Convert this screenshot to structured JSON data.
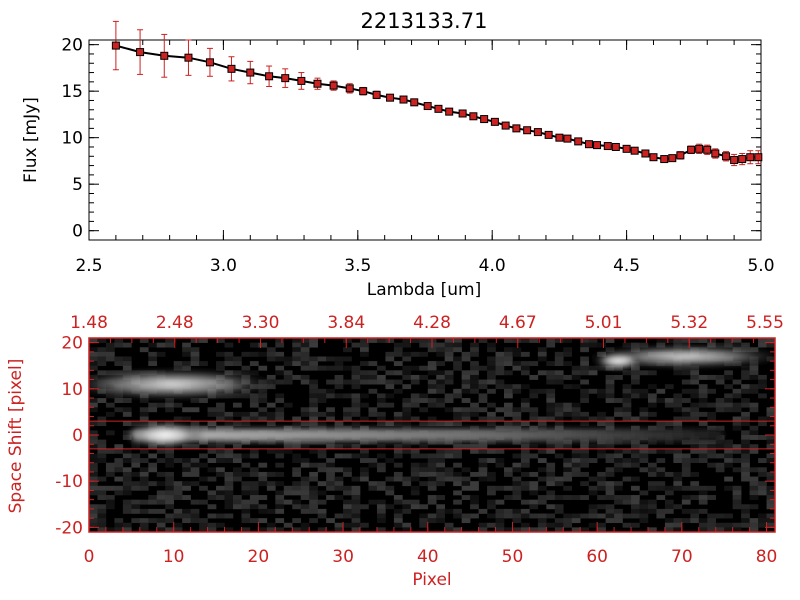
{
  "chart_data": [
    {
      "type": "scatter",
      "title": "2213133.71",
      "xlabel": "Lambda [um]",
      "ylabel": "Flux [mJy]",
      "xlim": [
        2.5,
        5.0
      ],
      "ylim": [
        -1,
        20.5
      ],
      "x_ticks": [
        "2.5",
        "3.0",
        "3.5",
        "4.0",
        "4.5",
        "5.0"
      ],
      "y_ticks": [
        "0",
        "5",
        "10",
        "15",
        "20"
      ],
      "series": [
        {
          "marker": "square",
          "line_color": "#000000",
          "marker_color": "#cc2222",
          "errorbar_color": "#cc2222",
          "x": [
            2.6,
            2.69,
            2.78,
            2.87,
            2.95,
            3.03,
            3.1,
            3.17,
            3.23,
            3.29,
            3.35,
            3.41,
            3.47,
            3.52,
            3.57,
            3.62,
            3.67,
            3.71,
            3.76,
            3.8,
            3.84,
            3.89,
            3.93,
            3.97,
            4.01,
            4.05,
            4.09,
            4.13,
            4.17,
            4.21,
            4.25,
            4.28,
            4.32,
            4.36,
            4.39,
            4.43,
            4.46,
            4.5,
            4.53,
            4.57,
            4.6,
            4.64,
            4.67,
            4.7,
            4.74,
            4.77,
            4.8,
            4.83,
            4.87,
            4.9,
            4.93,
            4.96,
            4.99
          ],
          "y": [
            19.9,
            19.2,
            18.8,
            18.6,
            18.1,
            17.4,
            17.0,
            16.6,
            16.4,
            16.1,
            15.8,
            15.6,
            15.3,
            15.0,
            14.6,
            14.3,
            14.1,
            13.8,
            13.4,
            13.1,
            12.8,
            12.6,
            12.3,
            12.0,
            11.7,
            11.3,
            11.0,
            10.8,
            10.6,
            10.3,
            10.0,
            9.9,
            9.6,
            9.3,
            9.2,
            9.1,
            9.0,
            8.8,
            8.6,
            8.3,
            7.9,
            7.7,
            7.8,
            8.1,
            8.7,
            8.8,
            8.7,
            8.3,
            8.0,
            7.6,
            7.7,
            7.9,
            7.9
          ],
          "err": [
            2.6,
            2.4,
            2.3,
            1.9,
            1.5,
            1.3,
            1.2,
            1.1,
            1.0,
            0.9,
            0.6,
            0.5,
            0.5,
            0.4,
            0.4,
            0.3,
            0.3,
            0.3,
            0.3,
            0.3,
            0.3,
            0.3,
            0.3,
            0.3,
            0.3,
            0.3,
            0.3,
            0.3,
            0.3,
            0.3,
            0.3,
            0.3,
            0.3,
            0.3,
            0.3,
            0.3,
            0.3,
            0.3,
            0.3,
            0.3,
            0.3,
            0.3,
            0.3,
            0.4,
            0.4,
            0.5,
            0.5,
            0.5,
            0.5,
            0.6,
            0.6,
            0.7,
            0.7
          ]
        }
      ]
    },
    {
      "type": "heatmap",
      "title": "",
      "xlabel": "Pixel",
      "ylabel": "Space Shift [pixel]",
      "xlim": [
        0,
        81
      ],
      "ylim": [
        -21,
        21
      ],
      "x_ticks": [
        "0",
        "10",
        "20",
        "30",
        "40",
        "50",
        "60",
        "70",
        "80"
      ],
      "y_ticks": [
        "-20",
        "-10",
        "0",
        "10",
        "20"
      ],
      "top_axis_ticks": [
        "1.48",
        "2.48",
        "3.30",
        "3.84",
        "4.28",
        "4.67",
        "5.01",
        "5.32",
        "5.55"
      ],
      "extraction_window": [
        -3,
        3
      ],
      "colormap": "grayscale",
      "axis_color": "#cc2222",
      "features": [
        {
          "label": "main trace",
          "x_start": 5,
          "x_end": 75,
          "y_center": 0,
          "peak_x": 9
        },
        {
          "label": "upper-left blob",
          "x_start": 0,
          "x_end": 22,
          "y_center": 11
        },
        {
          "label": "upper-right blob",
          "x_start": 59,
          "x_end": 81,
          "y_center": 17
        }
      ]
    }
  ]
}
